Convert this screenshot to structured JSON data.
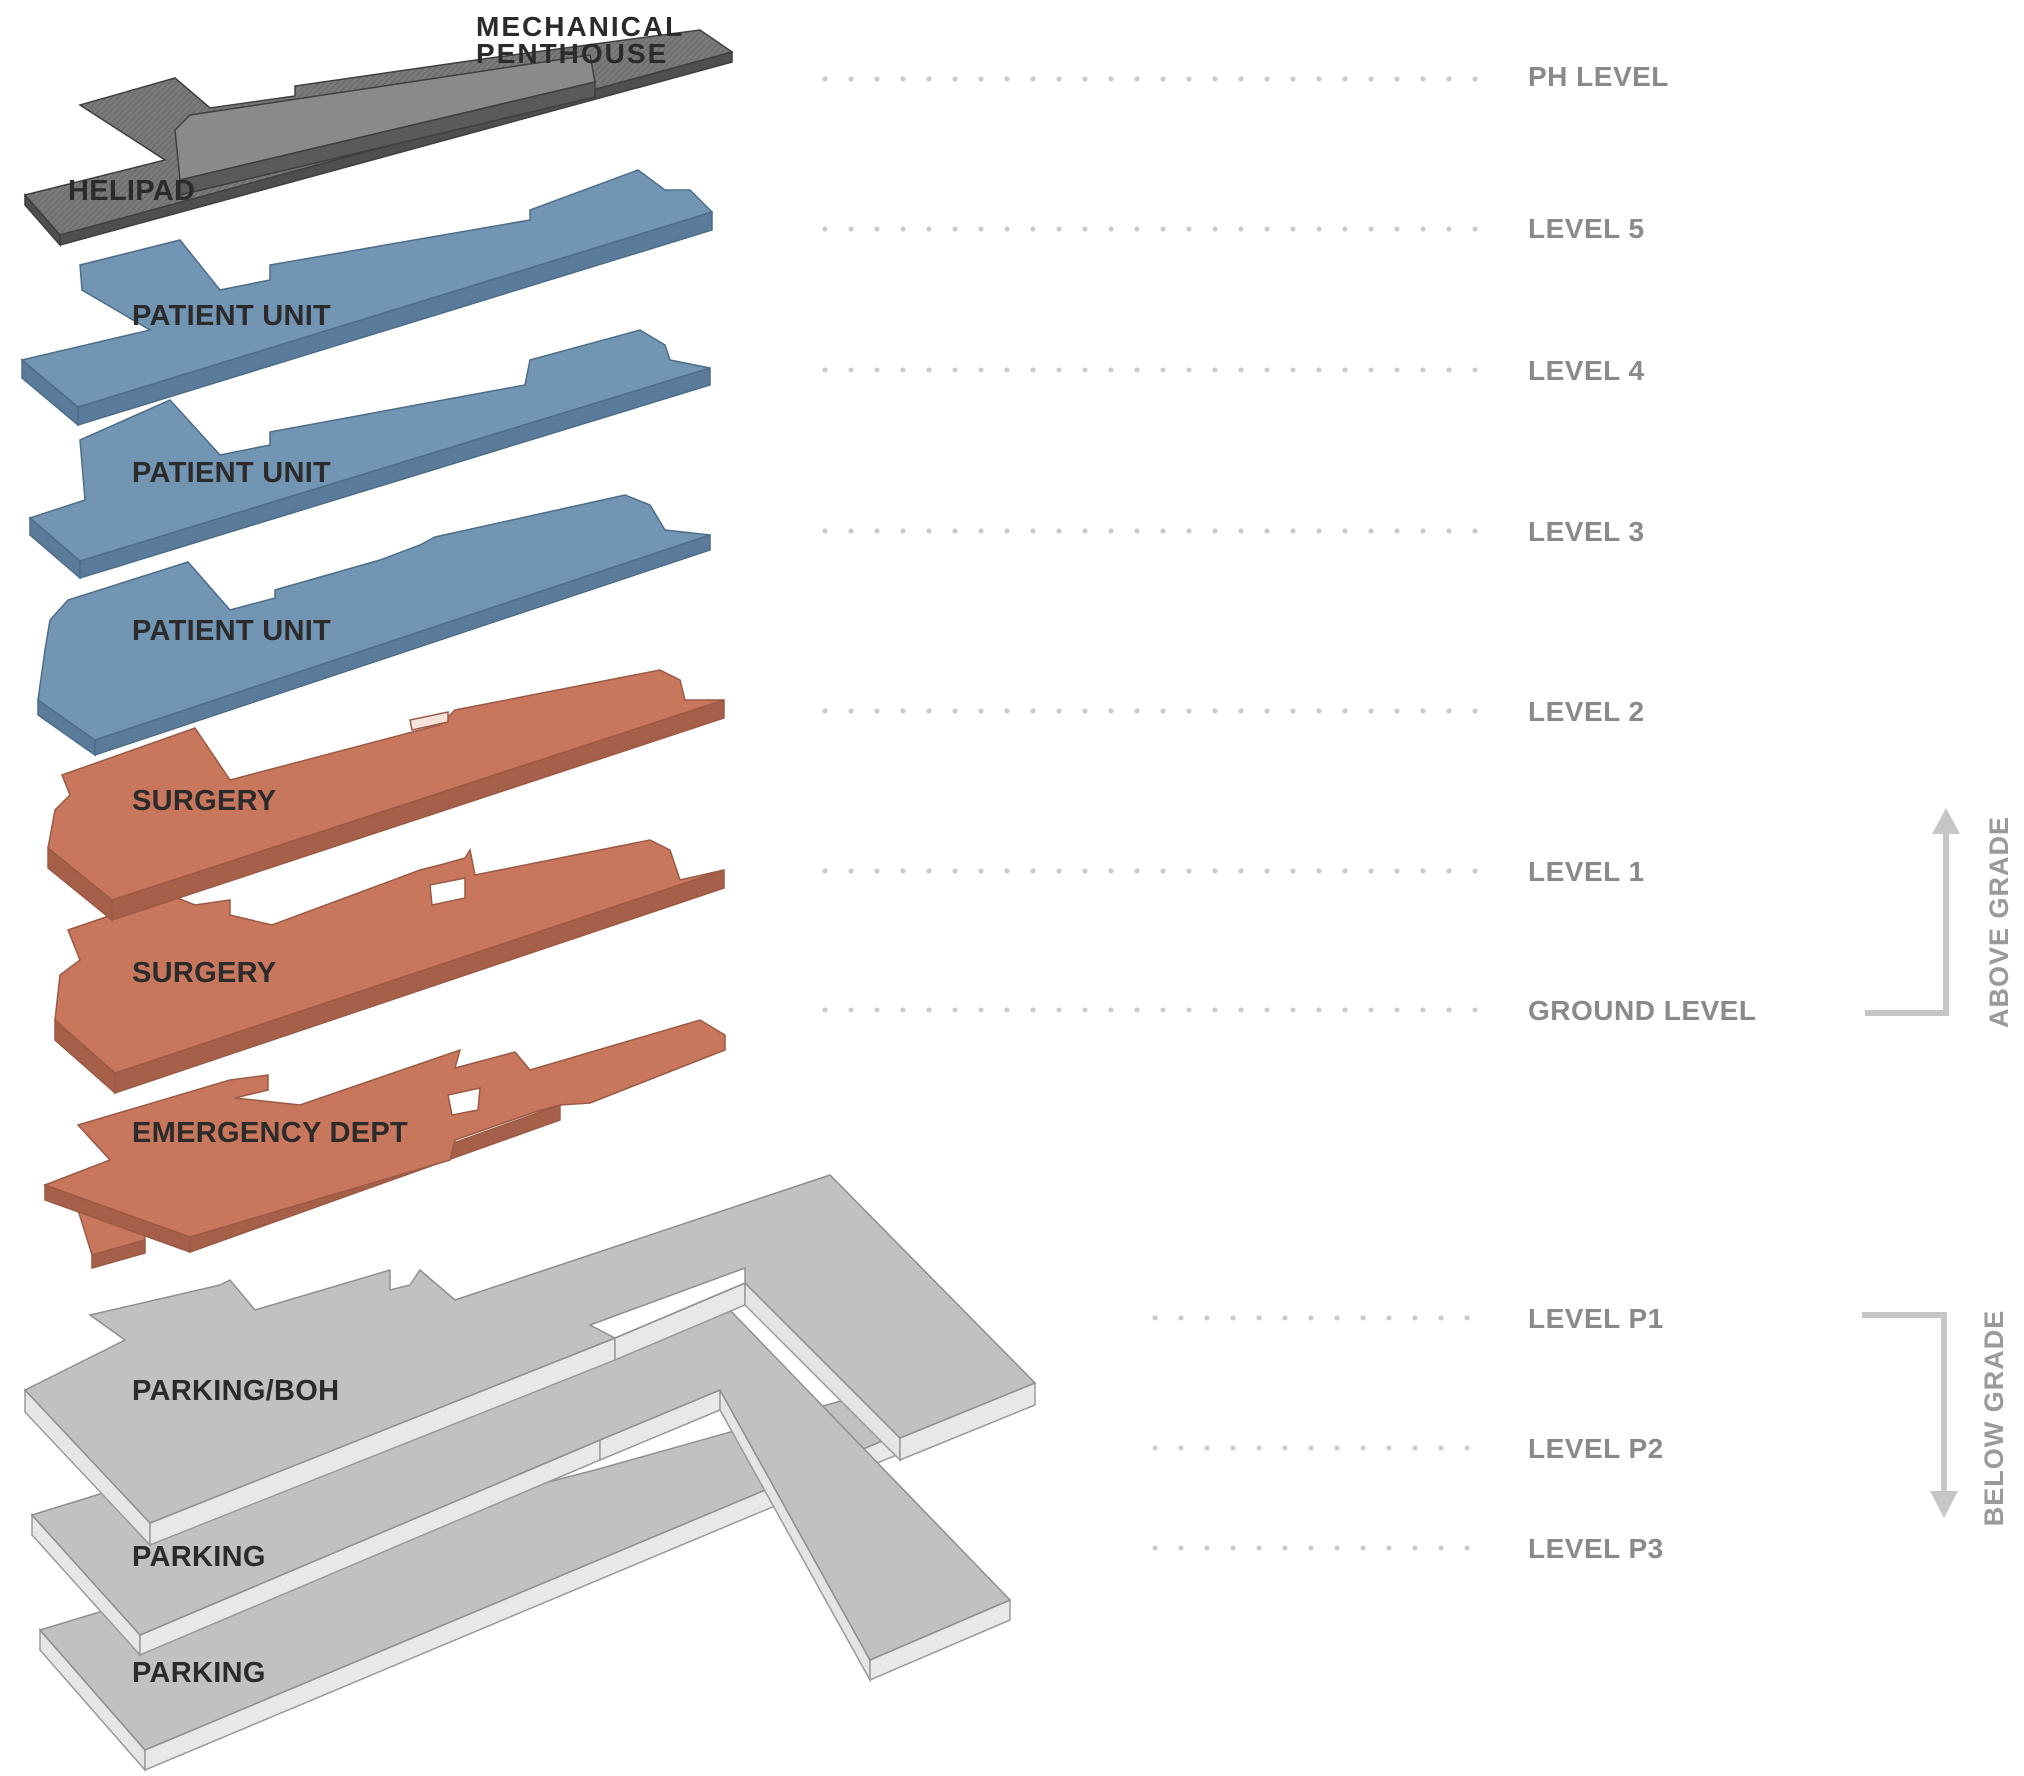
{
  "mechanical_label": [
    "MECHANICAL",
    "PENTHOUSE"
  ],
  "colors": {
    "penthouse_top": "#6f6f6f",
    "penthouse_side": "#4f4f4f",
    "patient_top": "#7295b4",
    "patient_side": "#5a7c9a",
    "surgery_top": "#c8775d",
    "surgery_side": "#a65f48",
    "parking_top": "#c1c1c1",
    "parking_side": "#e6e6e6",
    "dots": "#c9c9c9",
    "level_text": "#8a8a8a"
  },
  "slabs": [
    {
      "label": "HELIPAD",
      "kind": "penthouse"
    },
    {
      "label": "PATIENT UNIT",
      "kind": "patient"
    },
    {
      "label": "PATIENT UNIT",
      "kind": "patient"
    },
    {
      "label": "PATIENT UNIT",
      "kind": "patient"
    },
    {
      "label": "SURGERY",
      "kind": "surgery"
    },
    {
      "label": "SURGERY",
      "kind": "surgery"
    },
    {
      "label": "EMERGENCY DEPT",
      "kind": "surgery"
    },
    {
      "label": "PARKING/BOH",
      "kind": "parking"
    },
    {
      "label": "PARKING",
      "kind": "parking"
    },
    {
      "label": "PARKING",
      "kind": "parking"
    }
  ],
  "levels": [
    "PH LEVEL",
    "LEVEL 5",
    "LEVEL 4",
    "LEVEL 3",
    "LEVEL 2",
    "LEVEL 1",
    "GROUND LEVEL",
    "LEVEL P1",
    "LEVEL P2",
    "LEVEL P3"
  ],
  "grades": {
    "above": "ABOVE GRADE",
    "below": "BELOW GRADE"
  }
}
